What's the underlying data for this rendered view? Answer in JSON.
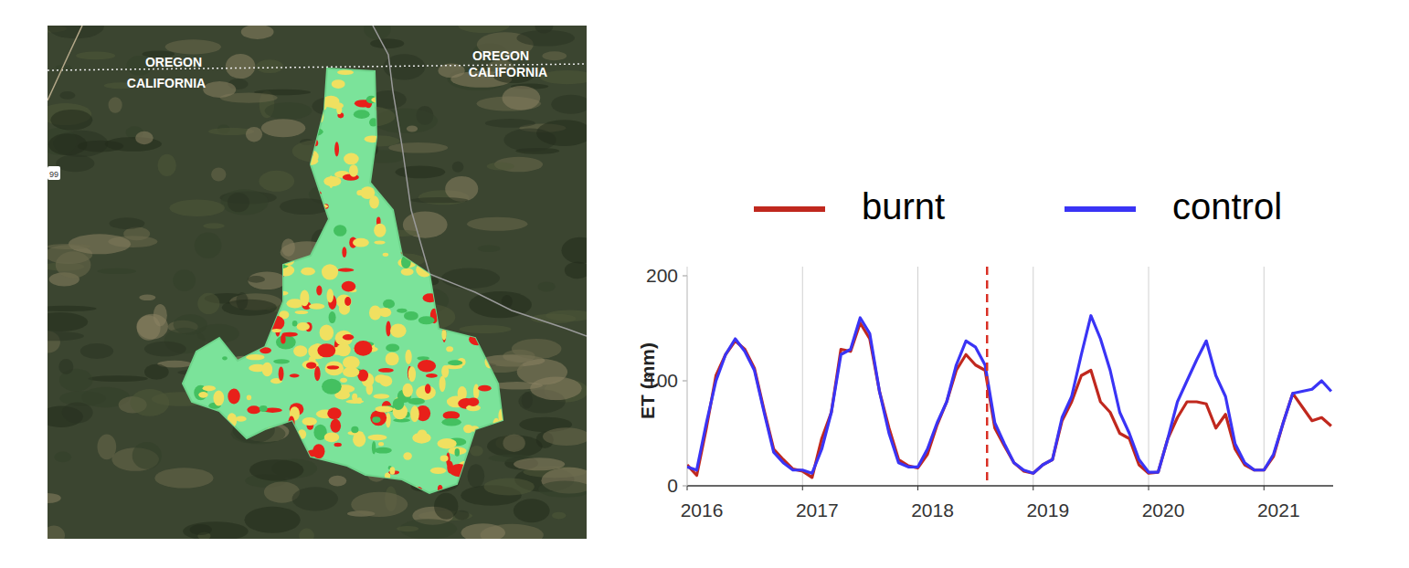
{
  "map": {
    "labels": [
      "OREGON",
      "CALIFORNIA",
      "OREGON",
      "CALIFORNIA"
    ],
    "road": "99"
  },
  "chart_data": {
    "type": "line",
    "y_label": "ET (mm)",
    "x": [
      2016.0,
      2016.083,
      2016.167,
      2016.25,
      2016.333,
      2016.417,
      2016.5,
      2016.583,
      2016.667,
      2016.75,
      2016.833,
      2016.917,
      2017.0,
      2017.083,
      2017.167,
      2017.25,
      2017.333,
      2017.417,
      2017.5,
      2017.583,
      2017.667,
      2017.75,
      2017.833,
      2017.917,
      2018.0,
      2018.083,
      2018.167,
      2018.25,
      2018.333,
      2018.417,
      2018.5,
      2018.583,
      2018.667,
      2018.75,
      2018.833,
      2018.917,
      2019.0,
      2019.083,
      2019.167,
      2019.25,
      2019.333,
      2019.417,
      2019.5,
      2019.583,
      2019.667,
      2019.75,
      2019.833,
      2019.917,
      2020.0,
      2020.083,
      2020.167,
      2020.25,
      2020.333,
      2020.417,
      2020.5,
      2020.583,
      2020.667,
      2020.75,
      2020.833,
      2020.917,
      2021.0,
      2021.083,
      2021.167,
      2021.25,
      2021.333,
      2021.417,
      2021.5,
      2021.583
    ],
    "series": [
      {
        "name": "burnt",
        "color": "#c0281e",
        "values": [
          20,
          10,
          55,
          105,
          125,
          138,
          130,
          112,
          72,
          35,
          25,
          16,
          14,
          8,
          45,
          70,
          130,
          128,
          155,
          140,
          90,
          55,
          25,
          19,
          17,
          30,
          58,
          80,
          110,
          125,
          115,
          110,
          55,
          38,
          22,
          14,
          12,
          20,
          25,
          62,
          80,
          105,
          110,
          80,
          70,
          50,
          45,
          20,
          12,
          13,
          45,
          65,
          80,
          80,
          78,
          55,
          68,
          35,
          20,
          15,
          15,
          28,
          60,
          88,
          75,
          62,
          65,
          57
        ]
      },
      {
        "name": "control",
        "color": "#3a34f5",
        "values": [
          18,
          15,
          60,
          100,
          125,
          140,
          128,
          110,
          70,
          32,
          22,
          15,
          15,
          12,
          35,
          70,
          125,
          130,
          160,
          145,
          90,
          50,
          22,
          18,
          18,
          35,
          60,
          80,
          115,
          138,
          132,
          115,
          60,
          40,
          22,
          15,
          12,
          20,
          25,
          65,
          85,
          125,
          162,
          140,
          110,
          70,
          50,
          25,
          13,
          13,
          45,
          80,
          100,
          120,
          138,
          105,
          85,
          40,
          22,
          15,
          15,
          30,
          60,
          88,
          90,
          92,
          100,
          90
        ]
      }
    ],
    "event_lines": [
      {
        "x": 2018.6,
        "color": "#d93025",
        "line_style": "dashed"
      }
    ],
    "xlim": [
      2016,
      2021.6
    ],
    "xticks": [
      2016,
      2017,
      2018,
      2019,
      2020,
      2021
    ],
    "ylim": [
      0,
      200
    ],
    "yticks": [
      0,
      100,
      200
    ],
    "grid": "x",
    "legend": "top"
  }
}
